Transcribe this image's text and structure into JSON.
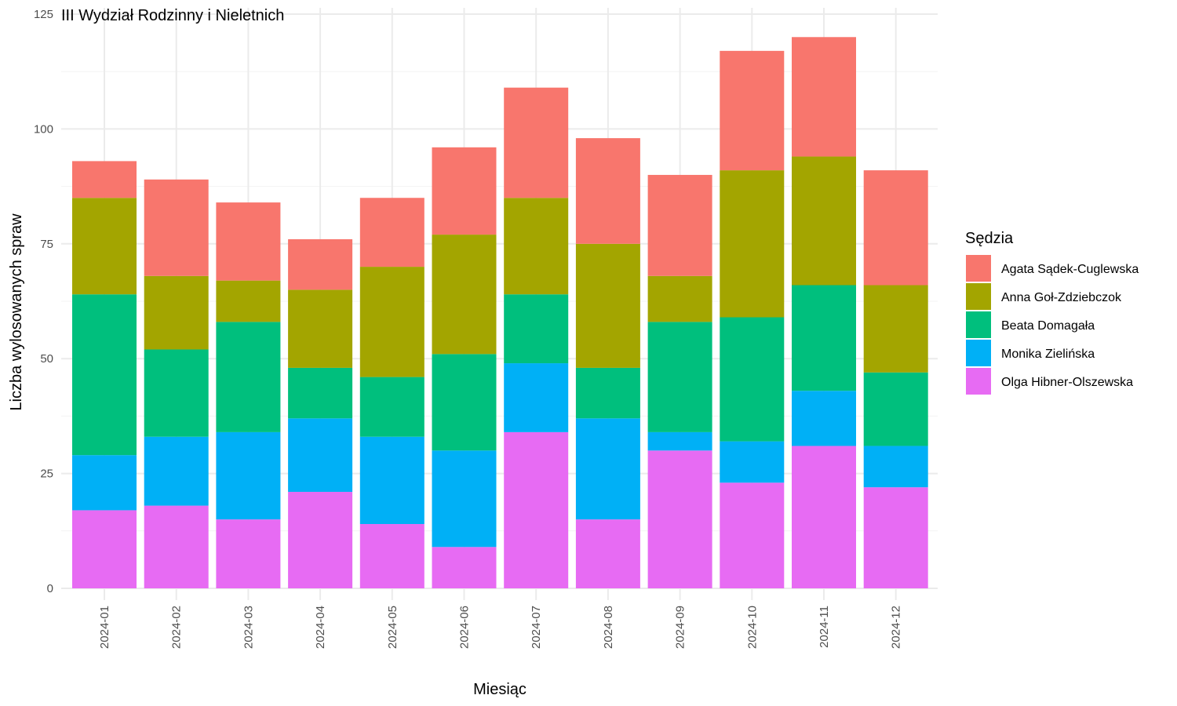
{
  "chart_data": {
    "type": "bar",
    "stacked": true,
    "title": "III Wydział Rodzinny i Nieletnich",
    "xlabel": "Miesiąc",
    "ylabel": "Liczba wylosowanych spraw",
    "ylim": [
      0,
      125
    ],
    "yticks": [
      0,
      25,
      50,
      75,
      100,
      125
    ],
    "grid": true,
    "legend_position": "right",
    "legend_title": "Sędzia",
    "categories": [
      "2024-01",
      "2024-02",
      "2024-03",
      "2024-04",
      "2024-05",
      "2024-06",
      "2024-07",
      "2024-08",
      "2024-09",
      "2024-10",
      "2024-11",
      "2024-12"
    ],
    "series": [
      {
        "name": "Agata Sądek-Cuglewska",
        "color": "#F8766D",
        "values": [
          8,
          21,
          17,
          11,
          15,
          19,
          24,
          23,
          22,
          26,
          26,
          25
        ]
      },
      {
        "name": "Anna Goł-Zdziebczok",
        "color": "#A3A500",
        "values": [
          21,
          16,
          9,
          17,
          24,
          26,
          21,
          27,
          10,
          32,
          28,
          19
        ]
      },
      {
        "name": "Beata Domagała",
        "color": "#00BF7D",
        "values": [
          35,
          19,
          24,
          11,
          13,
          21,
          15,
          11,
          24,
          27,
          23,
          16
        ]
      },
      {
        "name": "Monika Zielińska",
        "color": "#00B0F6",
        "values": [
          12,
          15,
          19,
          16,
          19,
          21,
          15,
          22,
          4,
          9,
          12,
          9
        ]
      },
      {
        "name": "Olga Hibner-Olszewska",
        "color": "#E76BF3",
        "values": [
          17,
          18,
          15,
          21,
          14,
          9,
          34,
          15,
          30,
          23,
          31,
          22
        ]
      }
    ]
  }
}
